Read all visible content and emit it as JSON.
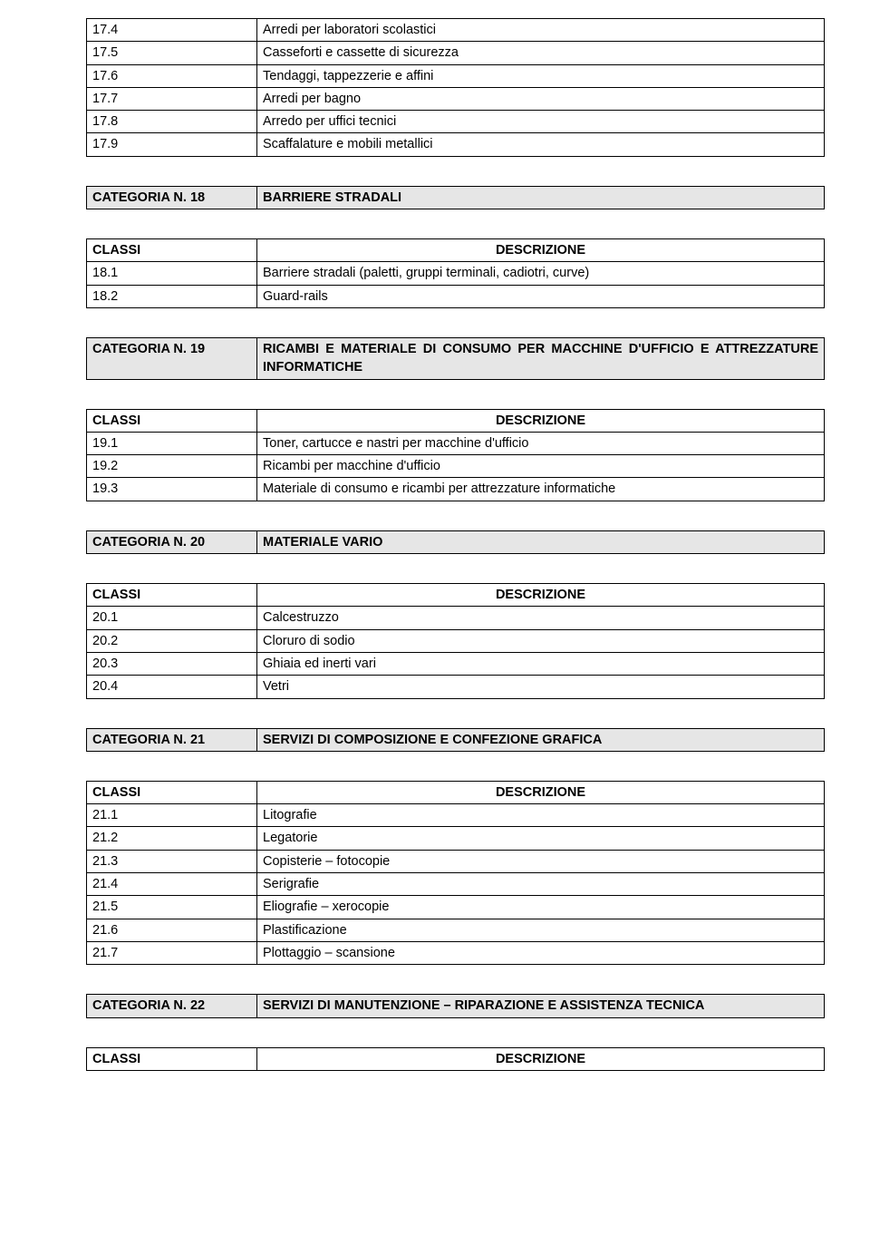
{
  "labels": {
    "classi": "CLASSI",
    "descrizione": "DESCRIZIONE"
  },
  "top_rows": [
    {
      "code": "17.4",
      "desc": "Arredi per laboratori scolastici"
    },
    {
      "code": "17.5",
      "desc": "Casseforti e cassette di sicurezza"
    },
    {
      "code": "17.6",
      "desc": "Tendaggi, tappezzerie e affini"
    },
    {
      "code": "17.7",
      "desc": "Arredi per bagno"
    },
    {
      "code": "17.8",
      "desc": "Arredo per uffici tecnici"
    },
    {
      "code": "17.9",
      "desc": "Scaffalature e mobili metallici"
    }
  ],
  "cat18": {
    "label": "CATEGORIA N. 18",
    "title": "BARRIERE STRADALI",
    "rows": [
      {
        "code": "18.1",
        "desc": "Barriere stradali (paletti, gruppi terminali, cadiotri, curve)"
      },
      {
        "code": "18.2",
        "desc": "Guard-rails"
      }
    ]
  },
  "cat19": {
    "label": "CATEGORIA N. 19",
    "title": "RICAMBI E MATERIALE DI CONSUMO PER MACCHINE D'UFFICIO E ATTREZZATURE INFORMATICHE",
    "rows": [
      {
        "code": "19.1",
        "desc": "Toner, cartucce e nastri per macchine d'ufficio"
      },
      {
        "code": "19.2",
        "desc": "Ricambi per macchine d'ufficio"
      },
      {
        "code": "19.3",
        "desc": "Materiale di consumo e ricambi per attrezzature informatiche",
        "justify": true
      }
    ]
  },
  "cat20": {
    "label": "CATEGORIA N. 20",
    "title": "MATERIALE VARIO",
    "rows": [
      {
        "code": "20.1",
        "desc": "Calcestruzzo"
      },
      {
        "code": "20.2",
        "desc": "Cloruro di sodio"
      },
      {
        "code": "20.3",
        "desc": "Ghiaia ed inerti vari"
      },
      {
        "code": "20.4",
        "desc": "Vetri"
      }
    ]
  },
  "cat21": {
    "label": "CATEGORIA N. 21",
    "title": "SERVIZI DI COMPOSIZIONE E CONFEZIONE GRAFICA",
    "rows": [
      {
        "code": "21.1",
        "desc": "Litografie"
      },
      {
        "code": "21.2",
        "desc": "Legatorie"
      },
      {
        "code": "21.3",
        "desc": "Copisterie – fotocopie"
      },
      {
        "code": "21.4",
        "desc": "Serigrafie"
      },
      {
        "code": "21.5",
        "desc": "Eliografie – xerocopie"
      },
      {
        "code": "21.6",
        "desc": "Plastificazione"
      },
      {
        "code": "21.7",
        "desc": "Plottaggio – scansione"
      }
    ]
  },
  "cat22": {
    "label": "CATEGORIA N. 22",
    "title": "SERVIZI DI MANUTENZIONE – RIPARAZIONE E ASSISTENZA TECNICA"
  }
}
